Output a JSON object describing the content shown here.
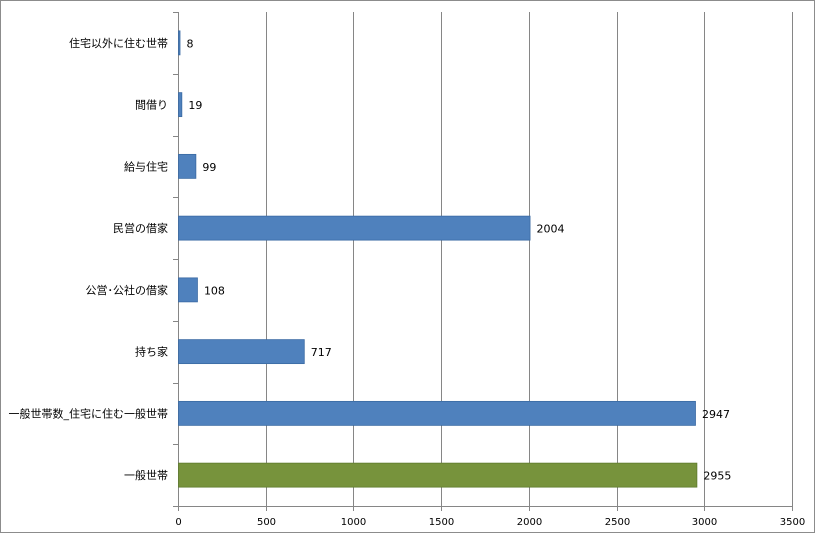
{
  "chart_data": {
    "type": "bar",
    "orientation": "horizontal",
    "title": "",
    "xlabel": "",
    "ylabel": "",
    "categories": [
      "住宅以外に住む世帯",
      "間借り",
      "給与住宅",
      "民営の借家",
      "公営･公社の借家",
      "持ち家",
      "一般世帯数_住宅に住む一般世帯",
      "一般世帯"
    ],
    "values": [
      8,
      19,
      99,
      2004,
      108,
      717,
      2947,
      2955
    ],
    "bar_colors": [
      "#4f81bd",
      "#4f81bd",
      "#4f81bd",
      "#4f81bd",
      "#4f81bd",
      "#4f81bd",
      "#4f81bd",
      "#77933c"
    ],
    "xlim": [
      0,
      3500
    ],
    "x_ticks": [
      0,
      500,
      1000,
      1500,
      2000,
      2500,
      3000,
      3500
    ],
    "grid": "vertical",
    "legend": "none"
  }
}
